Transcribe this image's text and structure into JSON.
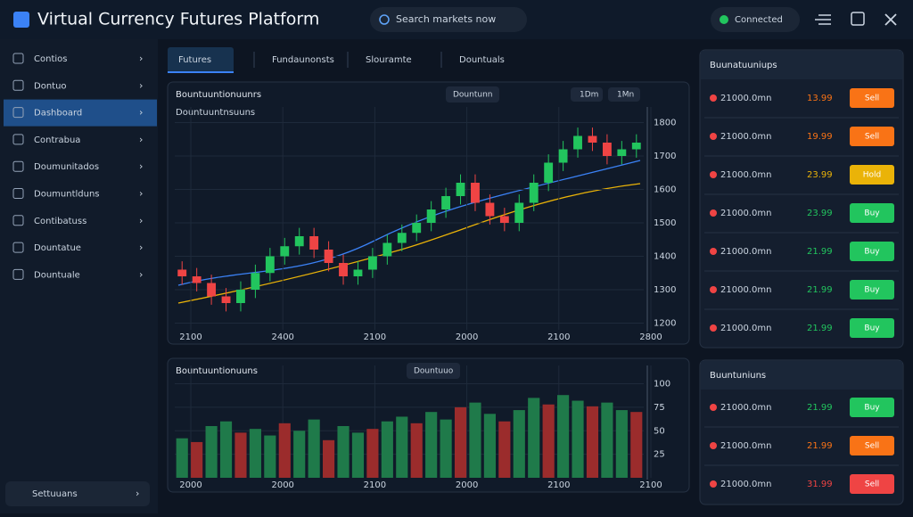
{
  "header": {
    "title": "Virtual Currency Futures Platform",
    "search": "Search markets now",
    "account": "Connected"
  },
  "sidebar": {
    "items": [
      "Contios",
      "Dontuo",
      "Dashboard",
      "Contrabua",
      "Doumunitados",
      "Doumuntlduns",
      "Contibatuss",
      "Dountatue",
      "Dountuale"
    ],
    "active": 2,
    "footer": "Settuuans"
  },
  "tabs": {
    "items": [
      "Futures",
      "Fundaunonsts",
      "Slouramte",
      "Dountuals"
    ],
    "active": 0
  },
  "chart_data": [
    {
      "type": "candlestick",
      "title": "Bountuuntionuunrs",
      "subtitle": "Dountuuntnsuuns",
      "badge": "Dountunn",
      "controls": [
        "1Dm",
        "1Mn"
      ],
      "open": [
        1360,
        1340,
        1320,
        1280,
        1260,
        1300,
        1350,
        1400,
        1430,
        1460,
        1420,
        1380,
        1340,
        1360,
        1400,
        1440,
        1470,
        1500,
        1540,
        1580,
        1620,
        1560,
        1520,
        1500,
        1560,
        1620,
        1680,
        1720,
        1760,
        1740,
        1700,
        1720
      ],
      "high": [
        1385,
        1365,
        1345,
        1305,
        1325,
        1375,
        1425,
        1455,
        1485,
        1485,
        1445,
        1405,
        1385,
        1425,
        1465,
        1495,
        1525,
        1565,
        1605,
        1645,
        1645,
        1585,
        1545,
        1585,
        1645,
        1705,
        1745,
        1785,
        1785,
        1765,
        1745,
        1765
      ],
      "low": [
        1315,
        1295,
        1255,
        1235,
        1235,
        1275,
        1325,
        1375,
        1405,
        1395,
        1355,
        1315,
        1315,
        1335,
        1375,
        1415,
        1445,
        1475,
        1515,
        1555,
        1535,
        1495,
        1475,
        1475,
        1535,
        1595,
        1655,
        1695,
        1715,
        1675,
        1675,
        1695
      ],
      "close": [
        1340,
        1320,
        1280,
        1260,
        1300,
        1350,
        1400,
        1430,
        1460,
        1420,
        1380,
        1340,
        1360,
        1400,
        1440,
        1470,
        1500,
        1540,
        1580,
        1620,
        1560,
        1520,
        1500,
        1560,
        1620,
        1680,
        1720,
        1760,
        1740,
        1700,
        1720,
        1740
      ],
      "ylim": [
        1180,
        1820
      ],
      "yticks": [
        1200,
        1300,
        1400,
        1500,
        1600,
        1700,
        1800
      ],
      "xlabels": [
        "2100",
        "2400",
        "2100",
        "2000",
        "2100",
        "2800"
      ],
      "up_color": "#22c55e",
      "down_color": "#ef4444",
      "grid": true
    },
    {
      "type": "bar",
      "title": "Bountuuntionuuns",
      "badge": "Dountuuo",
      "values": [
        42,
        38,
        55,
        60,
        48,
        52,
        45,
        58,
        50,
        62,
        40,
        55,
        48,
        52,
        60,
        65,
        58,
        70,
        62,
        75,
        80,
        68,
        60,
        72,
        85,
        78,
        88,
        82,
        76,
        80,
        72,
        70
      ],
      "ylim": [
        0,
        110
      ],
      "yticks": [
        25,
        50,
        75,
        100
      ],
      "xlabels": [
        "2000",
        "2000",
        "2100",
        "2000",
        "2100",
        "2100"
      ],
      "up_color": "#1f7a4a",
      "down_color": "#9b2c2c",
      "grid": true
    }
  ],
  "order_panels": [
    {
      "title": "Buunatuuniups",
      "rows": [
        {
          "price": "21000.0mn",
          "change": "13.99",
          "action": "Sell",
          "color": "#f97316"
        },
        {
          "price": "21000.0mn",
          "change": "19.99",
          "action": "Sell",
          "color": "#f97316"
        },
        {
          "price": "21000.0mn",
          "change": "23.99",
          "action": "Hold",
          "color": "#eab308"
        },
        {
          "price": "21000.0mn",
          "change": "23.99",
          "action": "Buy",
          "color": "#22c55e"
        },
        {
          "price": "21000.0mn",
          "change": "21.99",
          "action": "Buy",
          "color": "#22c55e"
        },
        {
          "price": "21000.0mn",
          "change": "21.99",
          "action": "Buy",
          "color": "#22c55e"
        },
        {
          "price": "21000.0mn",
          "change": "21.99",
          "action": "Buy",
          "color": "#22c55e"
        }
      ]
    },
    {
      "title": "Buuntuniuns",
      "rows": [
        {
          "price": "21000.0mn",
          "change": "21.99",
          "action": "Buy",
          "color": "#22c55e"
        },
        {
          "price": "21000.0mn",
          "change": "21.99",
          "action": "Sell",
          "color": "#f97316"
        },
        {
          "price": "21000.0mn",
          "change": "31.99",
          "action": "Sell",
          "color": "#ef4444"
        }
      ]
    }
  ]
}
